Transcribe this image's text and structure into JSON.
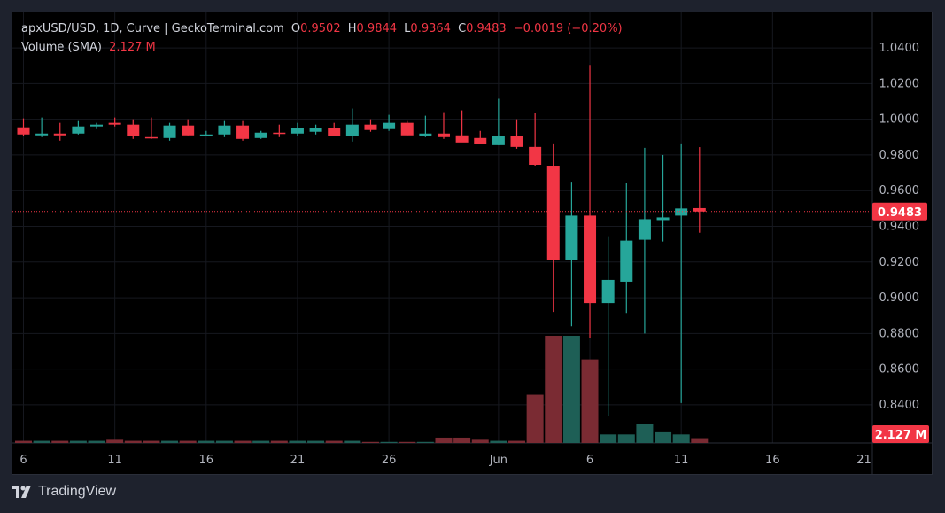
{
  "header": {
    "symbol_line": "apxUSD/USD, 1D, Curve | GeckoTerminal.com",
    "o_label": "O",
    "o_value": "0.9502",
    "h_label": "H",
    "h_value": "0.9844",
    "l_label": "L",
    "l_value": "0.9364",
    "c_label": "C",
    "c_value": "0.9483",
    "change": "−0.0019 (−0.20%)",
    "volume_label": "Volume (SMA)",
    "volume_value": "2.127 M"
  },
  "price_label": "0.9483",
  "volume_label_badge": "2.127 M",
  "footer": {
    "brand": "TradingView"
  },
  "colors": {
    "up": "#26a69a",
    "down": "#f23645",
    "vol_up": "#1e5f56",
    "vol_down": "#7a2b33"
  },
  "chart_data": {
    "type": "candlestick",
    "y_ticks": [
      "1.0400",
      "1.0200",
      "1.0000",
      "0.9800",
      "0.9600",
      "0.9400",
      "0.9200",
      "0.9000",
      "0.8800",
      "0.8600",
      "0.8400"
    ],
    "x_ticks": [
      {
        "day": 0,
        "label": "6"
      },
      {
        "day": 5,
        "label": "11"
      },
      {
        "day": 10,
        "label": "16"
      },
      {
        "day": 15,
        "label": "21"
      },
      {
        "day": 20,
        "label": "26"
      },
      {
        "day": 26,
        "label": "Jun"
      },
      {
        "day": 31,
        "label": "6"
      },
      {
        "day": 36,
        "label": "11"
      },
      {
        "day": 41,
        "label": "16"
      },
      {
        "day": 46,
        "label": "21"
      }
    ],
    "ylim": [
      0.835,
      1.045
    ],
    "last_close": 0.9483,
    "candles": [
      {
        "d": 0,
        "o": 0.9955,
        "h": 1.0005,
        "l": 0.9905,
        "c": 0.9915,
        "v": 0.02
      },
      {
        "d": 1,
        "o": 0.991,
        "h": 1.001,
        "l": 0.99,
        "c": 0.992,
        "v": 0.02
      },
      {
        "d": 2,
        "o": 0.992,
        "h": 0.998,
        "l": 0.988,
        "c": 0.991,
        "v": 0.02
      },
      {
        "d": 3,
        "o": 0.992,
        "h": 0.999,
        "l": 0.9915,
        "c": 0.996,
        "v": 0.02
      },
      {
        "d": 4,
        "o": 0.996,
        "h": 0.998,
        "l": 0.9945,
        "c": 0.997,
        "v": 0.02
      },
      {
        "d": 5,
        "o": 0.998,
        "h": 1.001,
        "l": 0.996,
        "c": 0.997,
        "v": 0.03
      },
      {
        "d": 6,
        "o": 0.997,
        "h": 1.0,
        "l": 0.989,
        "c": 0.9905,
        "v": 0.02
      },
      {
        "d": 7,
        "o": 0.99,
        "h": 1.001,
        "l": 0.989,
        "c": 0.9895,
        "v": 0.02
      },
      {
        "d": 8,
        "o": 0.9895,
        "h": 0.998,
        "l": 0.988,
        "c": 0.9965,
        "v": 0.02
      },
      {
        "d": 9,
        "o": 0.9965,
        "h": 1.0,
        "l": 0.991,
        "c": 0.991,
        "v": 0.02
      },
      {
        "d": 10,
        "o": 0.991,
        "h": 0.9935,
        "l": 0.9905,
        "c": 0.9915,
        "v": 0.02
      },
      {
        "d": 11,
        "o": 0.9915,
        "h": 0.999,
        "l": 0.99,
        "c": 0.9965,
        "v": 0.02
      },
      {
        "d": 12,
        "o": 0.9965,
        "h": 0.999,
        "l": 0.988,
        "c": 0.989,
        "v": 0.02
      },
      {
        "d": 13,
        "o": 0.9895,
        "h": 0.9935,
        "l": 0.989,
        "c": 0.9925,
        "v": 0.02
      },
      {
        "d": 14,
        "o": 0.9925,
        "h": 0.997,
        "l": 0.99,
        "c": 0.992,
        "v": 0.02
      },
      {
        "d": 15,
        "o": 0.992,
        "h": 0.998,
        "l": 0.9905,
        "c": 0.995,
        "v": 0.02
      },
      {
        "d": 16,
        "o": 0.993,
        "h": 0.997,
        "l": 0.9915,
        "c": 0.995,
        "v": 0.02
      },
      {
        "d": 17,
        "o": 0.995,
        "h": 0.998,
        "l": 0.9905,
        "c": 0.9905,
        "v": 0.02
      },
      {
        "d": 18,
        "o": 0.9905,
        "h": 1.006,
        "l": 0.9875,
        "c": 0.997,
        "v": 0.02
      },
      {
        "d": 19,
        "o": 0.997,
        "h": 1.0,
        "l": 0.993,
        "c": 0.994,
        "v": 0.01
      },
      {
        "d": 20,
        "o": 0.9945,
        "h": 1.0025,
        "l": 0.9935,
        "c": 0.998,
        "v": 0.01
      },
      {
        "d": 21,
        "o": 0.998,
        "h": 0.999,
        "l": 0.991,
        "c": 0.991,
        "v": 0.01
      },
      {
        "d": 22,
        "o": 0.9905,
        "h": 1.002,
        "l": 0.99,
        "c": 0.992,
        "v": 0.01
      },
      {
        "d": 23,
        "o": 0.992,
        "h": 1.004,
        "l": 0.989,
        "c": 0.99,
        "v": 0.05
      },
      {
        "d": 24,
        "o": 0.991,
        "h": 1.005,
        "l": 0.9875,
        "c": 0.987,
        "v": 0.05
      },
      {
        "d": 25,
        "o": 0.9895,
        "h": 0.9935,
        "l": 0.9865,
        "c": 0.986,
        "v": 0.03
      },
      {
        "d": 26,
        "o": 0.9855,
        "h": 1.0115,
        "l": 0.9855,
        "c": 0.9905,
        "v": 0.02
      },
      {
        "d": 27,
        "o": 0.9905,
        "h": 1.0,
        "l": 0.9835,
        "c": 0.9845,
        "v": 0.02
      },
      {
        "d": 28,
        "o": 0.9845,
        "h": 1.0035,
        "l": 0.974,
        "c": 0.9745,
        "v": 0.45
      },
      {
        "d": 29,
        "o": 0.974,
        "h": 0.9865,
        "l": 0.892,
        "c": 0.921,
        "v": 1.0
      },
      {
        "d": 30,
        "o": 0.921,
        "h": 0.965,
        "l": 0.884,
        "c": 0.946,
        "v": 1.0
      },
      {
        "d": 31,
        "o": 0.946,
        "h": 1.0305,
        "l": 0.8775,
        "c": 0.897,
        "v": 0.78
      },
      {
        "d": 32,
        "o": 0.897,
        "h": 0.9345,
        "l": 0.8335,
        "c": 0.91,
        "v": 0.08
      },
      {
        "d": 33,
        "o": 0.909,
        "h": 0.9645,
        "l": 0.8915,
        "c": 0.932,
        "v": 0.08
      },
      {
        "d": 34,
        "o": 0.9325,
        "h": 0.984,
        "l": 0.88,
        "c": 0.944,
        "v": 0.18
      },
      {
        "d": 35,
        "o": 0.9435,
        "h": 0.98,
        "l": 0.9315,
        "c": 0.945,
        "v": 0.1
      },
      {
        "d": 36,
        "o": 0.946,
        "h": 0.9865,
        "l": 0.841,
        "c": 0.95,
        "v": 0.08
      },
      {
        "d": 37,
        "o": 0.9502,
        "h": 0.9844,
        "l": 0.9364,
        "c": 0.9483,
        "v": 0.045
      }
    ]
  }
}
